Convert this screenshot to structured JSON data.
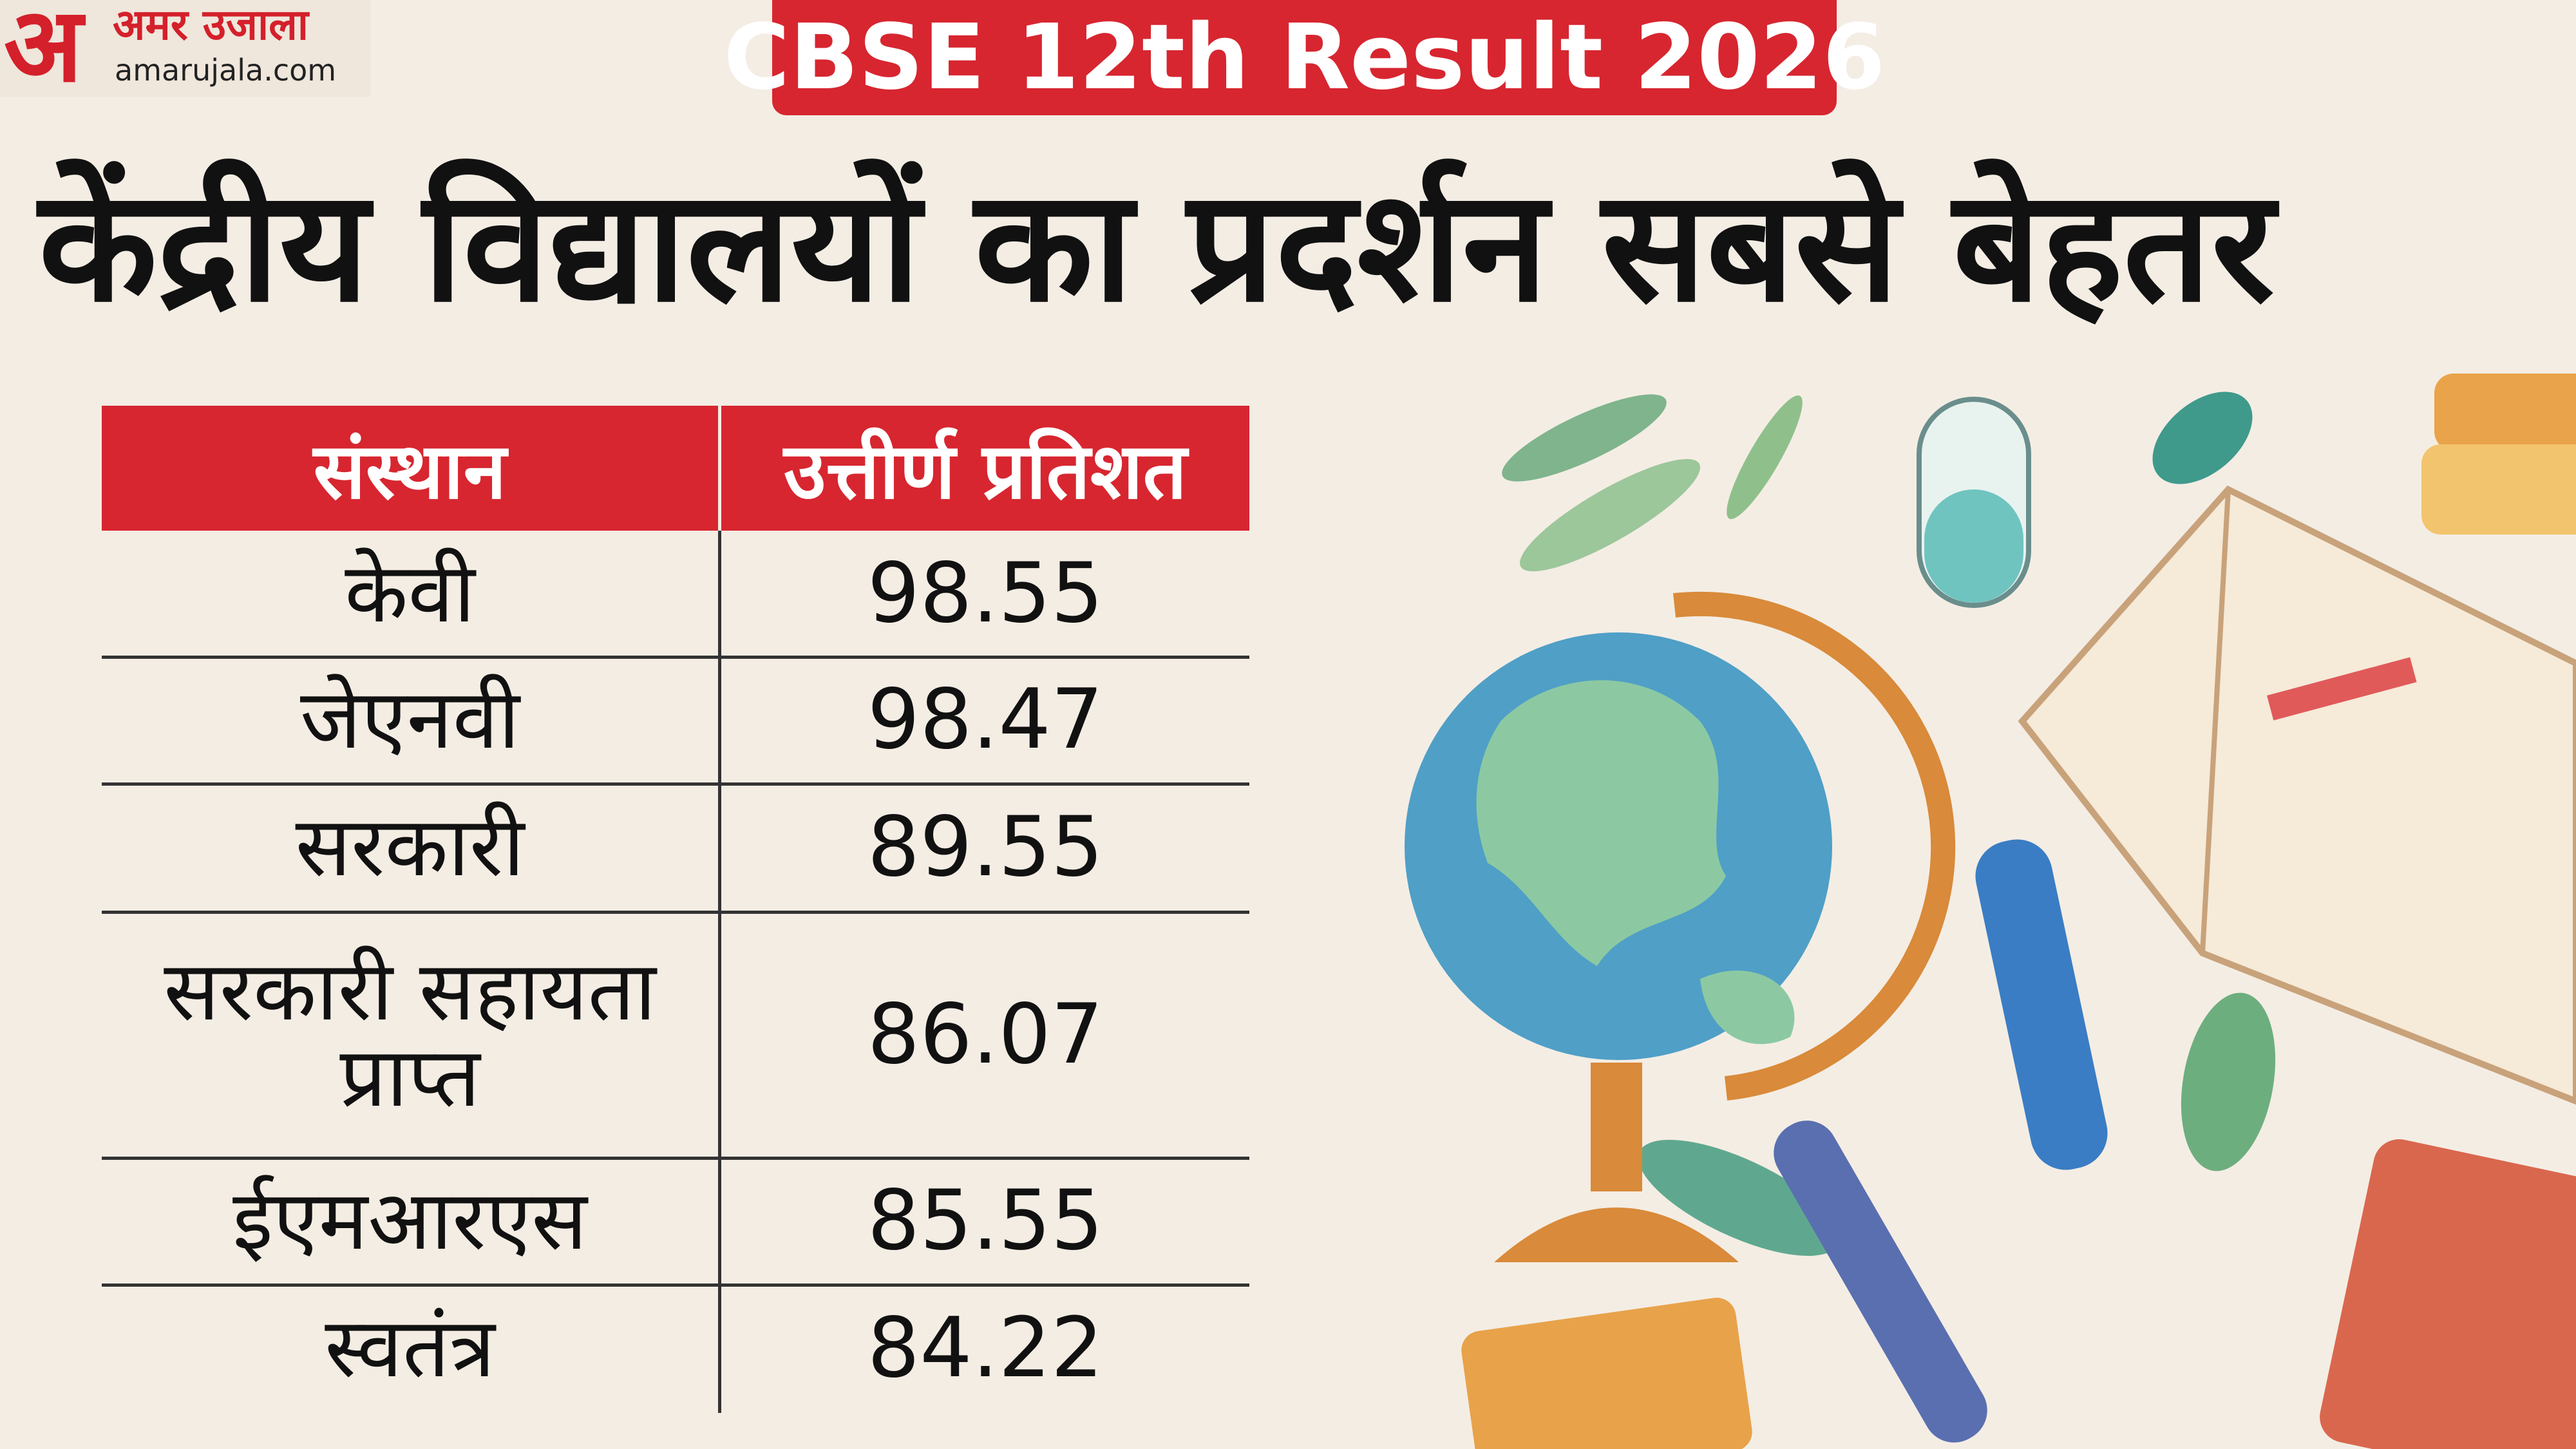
{
  "header": {
    "logo_hindi": "अमर उजाला",
    "logo_url": "amarujala.com",
    "badge": "CBSE 12th Result 2026",
    "title": "केंद्रीय विद्यालयों का प्रदर्शन सबसे बेहतर"
  },
  "table": {
    "columns": [
      "संस्थान",
      "उत्तीर्ण प्रतिशत"
    ],
    "rows": [
      [
        "केवी",
        98.55
      ],
      [
        "जेएनवी",
        98.47
      ],
      [
        "सरकारी",
        89.55
      ],
      [
        "सरकारी सहायता प्राप्त",
        86.07
      ],
      [
        "ईएमआरएस",
        85.55
      ],
      [
        "स्वतंत्र",
        84.22
      ]
    ]
  }
}
